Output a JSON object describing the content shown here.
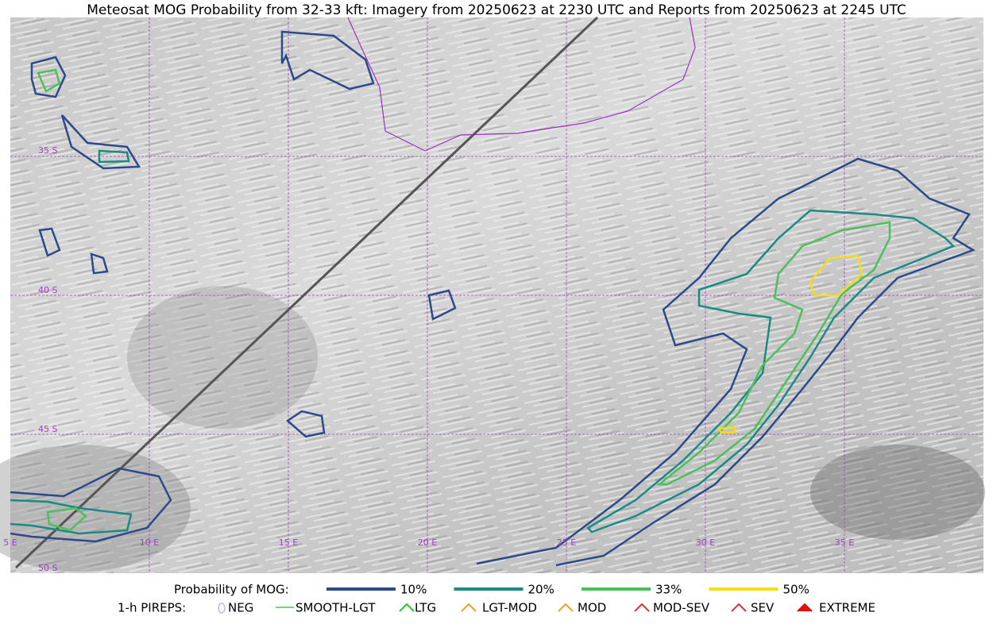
{
  "title": "Meteosat MOG Probability from 32-33 kft: Imagery from 20250623 at 2230 UTC and Reports from 20250623 at 2245 UTC",
  "map": {
    "lat_labels": [
      "35 S",
      "40 S",
      "45 S",
      "50 S"
    ],
    "lon_labels": [
      "5 E",
      "10 E",
      "15 E",
      "20 E",
      "25 E",
      "30 E",
      "35 E"
    ]
  },
  "legend": {
    "probability_title": "Probability of MOG:",
    "probability_items": [
      {
        "label": "10%",
        "color": "#2c4a8a"
      },
      {
        "label": "20%",
        "color": "#1b8a84"
      },
      {
        "label": "33%",
        "color": "#4dbf5c"
      },
      {
        "label": "50%",
        "color": "#f5dd1a"
      }
    ],
    "pirep_title": "1-h PIREPS:",
    "pirep_items": [
      {
        "label": "NEG",
        "color": "#b8b8f0"
      },
      {
        "label": "SMOOTH-LGT",
        "color": "#3ad33a"
      },
      {
        "label": "LTG",
        "color": "#22cc22"
      },
      {
        "label": "LGT-MOD",
        "color": "#f0a020"
      },
      {
        "label": "MOD",
        "color": "#f0a020"
      },
      {
        "label": "MOD-SEV",
        "color": "#e03030"
      },
      {
        "label": "SEV",
        "color": "#e03030"
      },
      {
        "label": "EXTREME",
        "color": "#e01010"
      }
    ]
  }
}
